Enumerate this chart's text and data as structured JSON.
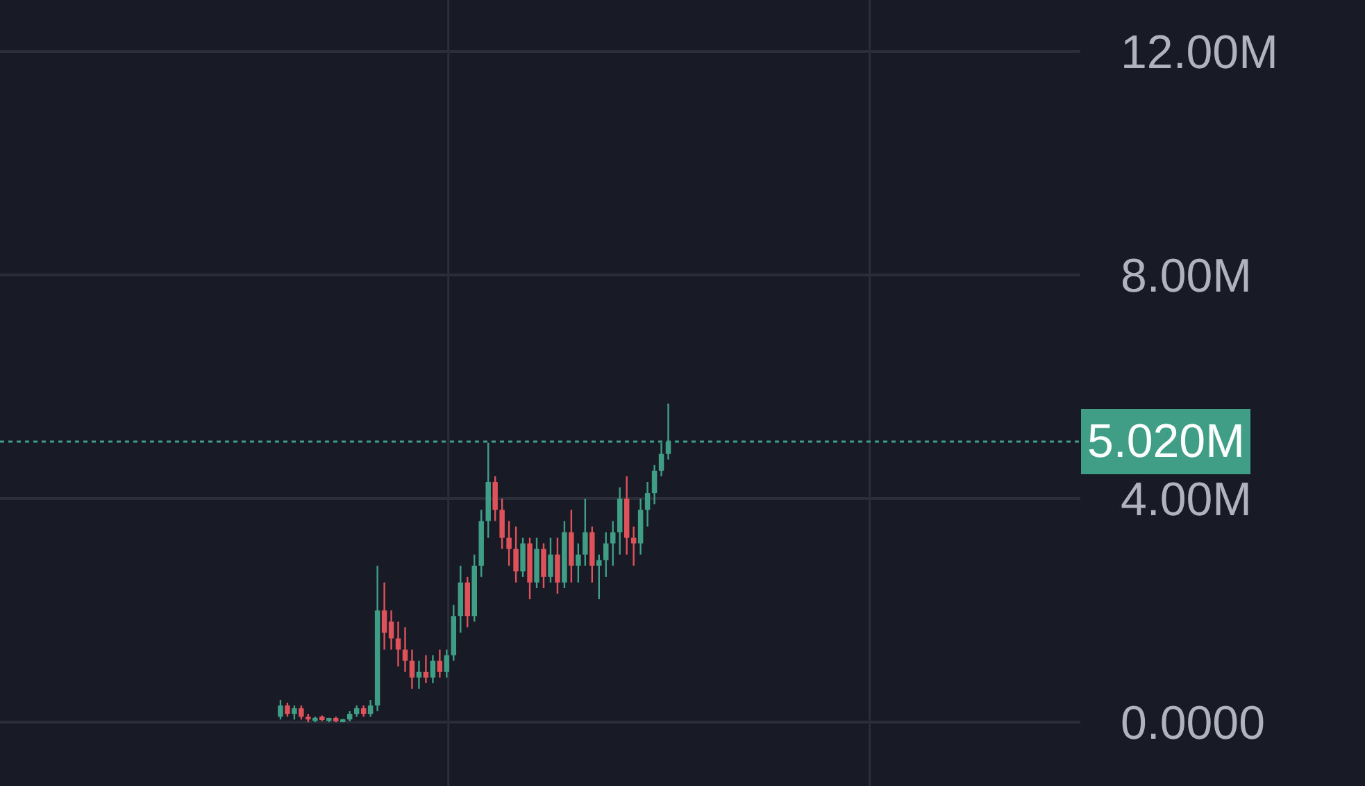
{
  "chart_data": {
    "type": "candlestick",
    "relative": false,
    "categories": [
      null,
      null,
      null,
      null,
      null,
      null,
      null,
      null,
      null,
      null,
      null,
      null,
      null,
      null,
      null,
      null,
      null,
      null,
      null,
      null,
      null,
      null,
      null,
      null,
      null,
      null,
      null,
      null,
      null,
      null,
      null,
      null,
      null,
      null,
      null,
      null,
      null,
      null,
      null,
      null,
      null,
      null,
      null,
      null,
      null,
      null,
      null,
      null,
      null,
      null,
      null,
      null,
      null,
      null,
      null,
      null,
      null,
      null,
      null,
      null,
      null,
      null,
      null,
      null,
      null,
      null,
      null,
      null,
      null,
      null,
      null,
      null,
      null,
      null,
      null,
      null,
      null,
      null,
      null,
      null,
      null,
      null,
      null,
      null,
      null,
      null,
      null,
      null,
      null,
      null,
      null,
      null,
      null,
      null,
      null,
      null,
      null,
      null,
      null,
      null,
      null,
      null,
      null,
      null,
      null,
      null,
      null,
      null,
      null,
      null,
      null,
      null,
      null,
      null,
      null,
      null,
      null,
      null,
      null,
      null,
      null,
      null,
      null,
      null,
      null,
      null,
      null,
      null,
      null,
      null,
      null,
      null,
      null,
      null,
      null,
      null,
      null,
      null,
      null,
      null,
      null,
      null,
      null,
      null,
      null,
      null,
      null,
      null,
      null,
      null,
      null,
      null,
      null,
      null,
      null,
      null
    ],
    "ohlc": [
      null,
      null,
      null,
      null,
      null,
      null,
      null,
      null,
      null,
      null,
      null,
      null,
      null,
      null,
      null,
      null,
      null,
      null,
      null,
      null,
      null,
      null,
      null,
      null,
      null,
      null,
      null,
      null,
      null,
      null,
      null,
      null,
      null,
      null,
      null,
      null,
      null,
      null,
      null,
      null,
      [
        100000,
        400000,
        50000,
        300000
      ],
      [
        300000,
        350000,
        100000,
        150000
      ],
      [
        150000,
        300000,
        50000,
        250000
      ],
      [
        250000,
        300000,
        50000,
        100000
      ],
      [
        100000,
        150000,
        0,
        50000
      ],
      [
        50000,
        100000,
        0,
        80000
      ],
      [
        80000,
        120000,
        20000,
        40000
      ],
      [
        40000,
        80000,
        0,
        60000
      ],
      [
        60000,
        100000,
        0,
        20000
      ],
      [
        20000,
        60000,
        0,
        50000
      ],
      [
        50000,
        200000,
        20000,
        150000
      ],
      [
        150000,
        300000,
        100000,
        250000
      ],
      [
        250000,
        300000,
        100000,
        150000
      ],
      [
        150000,
        400000,
        100000,
        300000
      ],
      [
        300000,
        2800000,
        200000,
        2000000
      ],
      [
        2000000,
        2500000,
        1300000,
        1600000
      ],
      [
        1800000,
        2000000,
        1300000,
        1500000
      ],
      [
        1500000,
        1800000,
        1000000,
        1300000
      ],
      [
        1300000,
        1700000,
        900000,
        1100000
      ],
      [
        1100000,
        1300000,
        600000,
        800000
      ],
      [
        800000,
        1100000,
        600000,
        900000
      ],
      [
        900000,
        1200000,
        700000,
        800000
      ],
      [
        800000,
        1200000,
        700000,
        1100000
      ],
      [
        1100000,
        1300000,
        800000,
        900000
      ],
      [
        900000,
        1300000,
        800000,
        1200000
      ],
      [
        1200000,
        2100000,
        1100000,
        1900000
      ],
      [
        1900000,
        2800000,
        1600000,
        2500000
      ],
      [
        2500000,
        2600000,
        1700000,
        1900000
      ],
      [
        1900000,
        3000000,
        1800000,
        2800000
      ],
      [
        2800000,
        3800000,
        2600000,
        3600000
      ],
      [
        3600000,
        5000000,
        3300000,
        4300000
      ],
      [
        4300000,
        4400000,
        3600000,
        3800000
      ],
      [
        3800000,
        4000000,
        3100000,
        3300000
      ],
      [
        3300000,
        3600000,
        2800000,
        3100000
      ],
      [
        3100000,
        3500000,
        2500000,
        2700000
      ],
      [
        2700000,
        3300000,
        2600000,
        3200000
      ],
      [
        3200000,
        3300000,
        2200000,
        2500000
      ],
      [
        2500000,
        3300000,
        2400000,
        3100000
      ],
      [
        3100000,
        3200000,
        2400000,
        2600000
      ],
      [
        2600000,
        3300000,
        2500000,
        3000000
      ],
      [
        3000000,
        3300000,
        2300000,
        2500000
      ],
      [
        2500000,
        3600000,
        2400000,
        3400000
      ],
      [
        3400000,
        3800000,
        2500000,
        2800000
      ],
      [
        2800000,
        3200000,
        2500000,
        3000000
      ],
      [
        3000000,
        4000000,
        2800000,
        3400000
      ],
      [
        3400000,
        3500000,
        2500000,
        2800000
      ],
      [
        2800000,
        3000000,
        2200000,
        2900000
      ],
      [
        2900000,
        3400000,
        2600000,
        3200000
      ],
      [
        3200000,
        3600000,
        2800000,
        3400000
      ],
      [
        3400000,
        4200000,
        3000000,
        4000000
      ],
      [
        4000000,
        4400000,
        3000000,
        3300000
      ],
      [
        3300000,
        3500000,
        2800000,
        3200000
      ],
      [
        3200000,
        4000000,
        3000000,
        3800000
      ],
      [
        3800000,
        4300000,
        3500000,
        4100000
      ],
      [
        4100000,
        4600000,
        3900000,
        4500000
      ],
      [
        4500000,
        5000000,
        4400000,
        4800000
      ],
      [
        4800000,
        5700000,
        4700000,
        5020000
      ],
      null,
      null,
      null,
      null,
      null,
      null,
      null,
      null,
      null,
      null,
      null,
      null,
      null,
      null,
      null,
      null,
      null,
      null,
      null,
      null,
      null,
      null,
      null,
      null,
      null,
      null,
      null,
      null,
      null,
      null,
      null,
      null,
      null,
      null,
      null,
      null,
      null,
      null,
      null,
      null,
      null,
      null,
      null,
      null,
      null,
      null,
      null,
      null,
      null,
      null,
      null,
      null,
      null,
      null,
      null,
      null,
      null,
      null,
      null
    ],
    "colors": [
      null,
      null,
      null,
      null,
      null,
      null,
      null,
      null,
      null,
      null,
      null,
      null,
      null,
      null,
      null,
      null,
      null,
      null,
      null,
      null,
      null,
      null,
      null,
      null,
      null,
      null,
      null,
      null,
      null,
      null,
      null,
      null,
      null,
      null,
      null,
      null,
      null,
      null,
      null,
      null,
      "#3f9e85",
      "#e0525a",
      "#3f9e85",
      "#e0525a",
      "#e0525a",
      "#3f9e85",
      "#e0525a",
      "#3f9e85",
      "#e0525a",
      "#3f9e85",
      "#3f9e85",
      "#3f9e85",
      "#e0525a",
      "#3f9e85",
      "#3f9e85",
      "#e0525a",
      "#e0525a",
      "#e0525a",
      "#e0525a",
      "#e0525a",
      "#3f9e85",
      "#e0525a",
      "#3f9e85",
      "#e0525a",
      "#3f9e85",
      "#3f9e85",
      "#3f9e85",
      "#e0525a",
      "#3f9e85",
      "#3f9e85",
      "#3f9e85",
      "#e0525a",
      "#e0525a",
      "#e0525a",
      "#e0525a",
      "#3f9e85",
      "#e0525a",
      "#3f9e85",
      "#e0525a",
      "#3f9e85",
      "#e0525a",
      "#3f9e85",
      "#e0525a",
      "#3f9e85",
      "#3f9e85",
      "#e0525a",
      "#3f9e85",
      "#3f9e85",
      "#3f9e85",
      "#3f9e85",
      "#e0525a",
      "#e0525a",
      "#3f9e85",
      "#3f9e85",
      "#3f9e85",
      "#3f9e85",
      "#3f9e85",
      null,
      null,
      null,
      null,
      null,
      null,
      null,
      null,
      null,
      null,
      null,
      null,
      null,
      null,
      null,
      null,
      null,
      null,
      null,
      null,
      null,
      null,
      null,
      null,
      null,
      null,
      null,
      null,
      null,
      null,
      null,
      null,
      null,
      null,
      null,
      null,
      null,
      null,
      null,
      null,
      null,
      null,
      null,
      null,
      null,
      null,
      null,
      null,
      null,
      null,
      null,
      null,
      null,
      null,
      null,
      null,
      null,
      null,
      null
    ],
    "ylim": [
      -1140000,
      12920000
    ],
    "yticks": [
      {
        "value": 0,
        "label": "0.0000"
      },
      {
        "value": 4000000,
        "label": "4.00M"
      },
      {
        "value": 8000000,
        "label": "8.00M"
      },
      {
        "value": 12000000,
        "label": "12.00M"
      }
    ],
    "grid": true,
    "ref_lines": [
      {
        "axis": "y",
        "value": 5020000,
        "label": "5.020M",
        "color": "#3f9e85",
        "line_style": "dotted"
      }
    ]
  }
}
